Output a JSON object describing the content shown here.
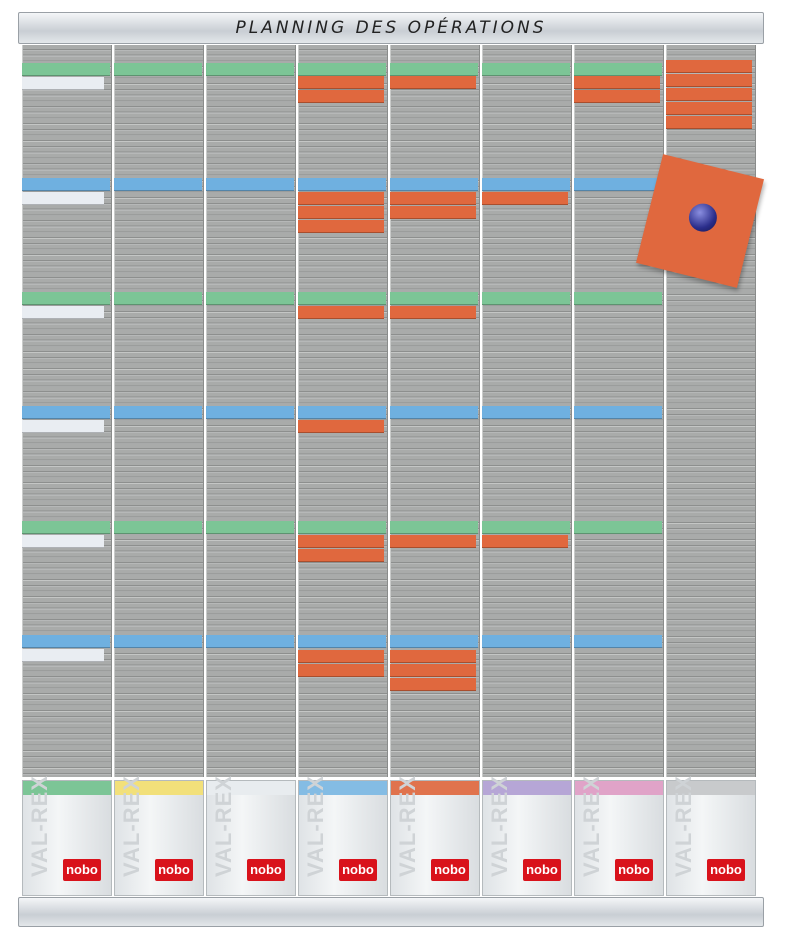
{
  "header": {
    "title": "PLANNING DES OPÉRATIONS"
  },
  "dispensers": [
    {
      "label": "VAL-REX",
      "brand": "nobo"
    },
    {
      "label": "VAL-REX",
      "brand": "nobo"
    },
    {
      "label": "VAL-REX",
      "brand": "nobo"
    },
    {
      "label": "VAL-REX",
      "brand": "nobo"
    },
    {
      "label": "VAL-REX",
      "brand": "nobo"
    },
    {
      "label": "VAL-REX",
      "brand": "nobo"
    },
    {
      "label": "VAL-REX",
      "brand": "nobo"
    },
    {
      "label": "VAL-REX",
      "brand": "nobo"
    }
  ]
}
